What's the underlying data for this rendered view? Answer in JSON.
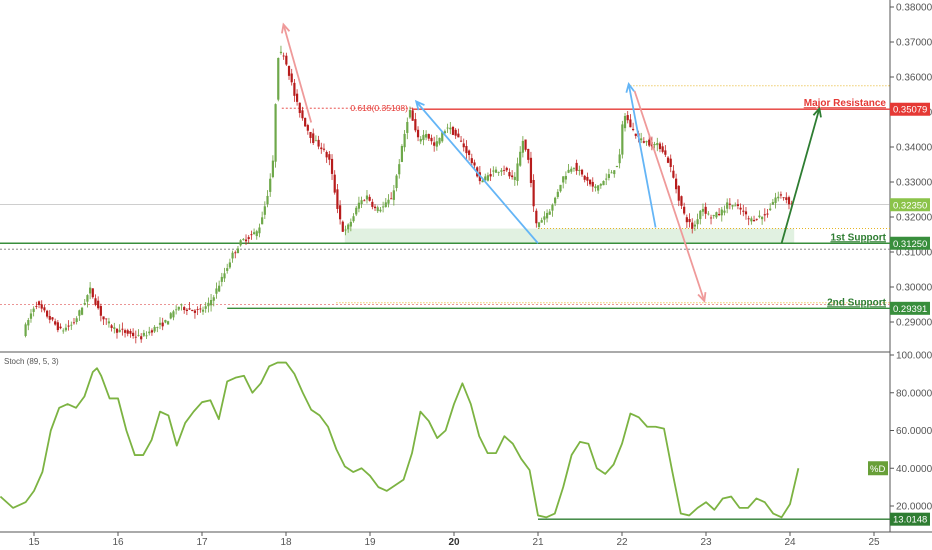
{
  "chart_data": [
    {
      "type": "candlestick",
      "title": "",
      "ylim": [
        0.284,
        0.383
      ],
      "y_ticks": [
        "0.38000",
        "0.37000",
        "0.36000",
        "0.35000",
        "0.34000",
        "0.33000",
        "0.32000",
        "0.31000",
        "0.30000",
        "0.29000"
      ],
      "x_ticks": [
        {
          "label": "15",
          "x": 15
        },
        {
          "label": "16",
          "x": 16
        },
        {
          "label": "17",
          "x": 17
        },
        {
          "label": "18",
          "x": 18
        },
        {
          "label": "19",
          "x": 19
        },
        {
          "label": "20",
          "x": 20,
          "bold": true
        },
        {
          "label": "21",
          "x": 21
        },
        {
          "label": "22",
          "x": 22
        },
        {
          "label": "23",
          "x": 23
        },
        {
          "label": "24",
          "x": 24
        },
        {
          "label": "25",
          "x": 25
        }
      ],
      "price_path": [
        [
          14.9,
          0.2868
        ],
        [
          15.05,
          0.2955
        ],
        [
          15.2,
          0.2915
        ],
        [
          15.35,
          0.2875
        ],
        [
          15.5,
          0.2895
        ],
        [
          15.6,
          0.294
        ],
        [
          15.7,
          0.2992
        ],
        [
          15.85,
          0.291
        ],
        [
          16.0,
          0.2878
        ],
        [
          16.15,
          0.2868
        ],
        [
          16.3,
          0.2855
        ],
        [
          16.45,
          0.288
        ],
        [
          16.6,
          0.29
        ],
        [
          16.75,
          0.2945
        ],
        [
          16.9,
          0.2935
        ],
        [
          17.0,
          0.293
        ],
        [
          17.1,
          0.2945
        ],
        [
          17.2,
          0.299
        ],
        [
          17.3,
          0.304
        ],
        [
          17.4,
          0.3095
        ],
        [
          17.5,
          0.313
        ],
        [
          17.6,
          0.3145
        ],
        [
          17.7,
          0.316
        ],
        [
          17.8,
          0.325
        ],
        [
          17.88,
          0.336
        ],
        [
          17.93,
          0.366
        ],
        [
          18.0,
          0.367
        ],
        [
          18.08,
          0.36
        ],
        [
          18.15,
          0.353
        ],
        [
          18.25,
          0.347
        ],
        [
          18.35,
          0.342
        ],
        [
          18.45,
          0.34
        ],
        [
          18.55,
          0.336
        ],
        [
          18.65,
          0.322
        ],
        [
          18.72,
          0.315
        ],
        [
          18.82,
          0.3195
        ],
        [
          18.9,
          0.324
        ],
        [
          19.0,
          0.326
        ],
        [
          19.1,
          0.322
        ],
        [
          19.2,
          0.323
        ],
        [
          19.3,
          0.326
        ],
        [
          19.4,
          0.338
        ],
        [
          19.5,
          0.351
        ],
        [
          19.6,
          0.342
        ],
        [
          19.7,
          0.344
        ],
        [
          19.8,
          0.34
        ],
        [
          19.95,
          0.346
        ],
        [
          20.1,
          0.342
        ],
        [
          20.2,
          0.338
        ],
        [
          20.35,
          0.33
        ],
        [
          20.5,
          0.333
        ],
        [
          20.62,
          0.334
        ],
        [
          20.75,
          0.33
        ],
        [
          20.85,
          0.342
        ],
        [
          20.93,
          0.335
        ],
        [
          21.0,
          0.3175
        ],
        [
          21.08,
          0.3195
        ],
        [
          21.2,
          0.323
        ],
        [
          21.32,
          0.331
        ],
        [
          21.45,
          0.335
        ],
        [
          21.55,
          0.332
        ],
        [
          21.7,
          0.328
        ],
        [
          21.85,
          0.331
        ],
        [
          22.0,
          0.336
        ],
        [
          22.05,
          0.35
        ],
        [
          22.15,
          0.345
        ],
        [
          22.25,
          0.342
        ],
        [
          22.38,
          0.341
        ],
        [
          22.5,
          0.34
        ],
        [
          22.6,
          0.335
        ],
        [
          22.7,
          0.326
        ],
        [
          22.78,
          0.32
        ],
        [
          22.88,
          0.3165
        ],
        [
          22.98,
          0.323
        ],
        [
          23.08,
          0.32
        ],
        [
          23.2,
          0.321
        ],
        [
          23.3,
          0.324
        ],
        [
          23.45,
          0.322
        ],
        [
          23.55,
          0.319
        ],
        [
          23.65,
          0.32
        ],
        [
          23.75,
          0.3205
        ],
        [
          23.85,
          0.3255
        ],
        [
          23.95,
          0.326
        ],
        [
          24.05,
          0.3235
        ]
      ],
      "levels": [
        {
          "name": "Major Resistance",
          "value": 0.35079,
          "label": "0.35079",
          "color": "#e53935"
        },
        {
          "name": "1st Support",
          "value": 0.3125,
          "label": "0.31250",
          "color": "#388e3c"
        },
        {
          "name": "2nd Support",
          "value": 0.29391,
          "label": "0.29391",
          "color": "#388e3c"
        },
        {
          "name": "current",
          "value": 0.3235,
          "label": "0.32350",
          "color": "#8bc34a"
        }
      ],
      "fib_label": "0.618(0.35108)",
      "annotations": [
        "Major Resistance",
        "1st Support",
        "2nd Support"
      ],
      "arrows": [
        {
          "color": "#ef9a9a",
          "from": [
            18.3,
            0.347
          ],
          "to": [
            17.97,
            0.375
          ]
        },
        {
          "color": "#ef9a9a",
          "from": [
            22.15,
            0.356
          ],
          "to": [
            22.98,
            0.296
          ]
        },
        {
          "color": "#64b5f6",
          "from": [
            21.0,
            0.3125
          ],
          "to": [
            19.55,
            0.353
          ]
        },
        {
          "color": "#64b5f6",
          "from": [
            22.4,
            0.317
          ],
          "to": [
            22.08,
            0.358
          ]
        },
        {
          "color": "#2e7d32",
          "from": [
            23.9,
            0.3125
          ],
          "to": [
            24.35,
            0.351
          ]
        }
      ]
    },
    {
      "type": "line",
      "title": "Stoch (89, 5, 3)",
      "ylim": [
        12,
        102
      ],
      "y_ticks": [
        "100.0000",
        "80.0000",
        "60.0000",
        "40.0000",
        "20.0000"
      ],
      "series": [
        {
          "name": "%D",
          "x": [
            14.6,
            14.75,
            14.9,
            15.0,
            15.1,
            15.2,
            15.3,
            15.4,
            15.5,
            15.6,
            15.7,
            15.75,
            15.8,
            15.9,
            16.0,
            16.1,
            16.2,
            16.3,
            16.4,
            16.5,
            16.6,
            16.7,
            16.8,
            16.9,
            17.0,
            17.1,
            17.2,
            17.3,
            17.4,
            17.5,
            17.6,
            17.7,
            17.8,
            17.9,
            18.0,
            18.1,
            18.2,
            18.3,
            18.4,
            18.5,
            18.6,
            18.7,
            18.8,
            18.9,
            19.0,
            19.1,
            19.2,
            19.3,
            19.4,
            19.5,
            19.6,
            19.7,
            19.8,
            19.9,
            20.0,
            20.1,
            20.2,
            20.3,
            20.4,
            20.5,
            20.6,
            20.7,
            20.8,
            20.9,
            21.0,
            21.1,
            21.2,
            21.3,
            21.4,
            21.5,
            21.6,
            21.7,
            21.8,
            21.9,
            22.0,
            22.1,
            22.2,
            22.3,
            22.4,
            22.5,
            22.6,
            22.7,
            22.8,
            22.9,
            23.0,
            23.1,
            23.2,
            23.3,
            23.4,
            23.5,
            23.6,
            23.7,
            23.8,
            23.9,
            24.0,
            24.1
          ],
          "values": [
            25,
            19,
            22,
            28,
            38,
            60,
            72,
            74,
            72,
            78,
            91,
            93,
            89,
            77,
            77,
            60,
            47,
            47,
            55,
            70,
            68,
            52,
            64,
            70,
            75,
            76,
            66,
            86,
            88,
            89,
            80,
            85,
            94,
            96,
            96,
            90,
            80,
            71,
            68,
            62,
            50,
            41,
            38,
            40,
            36,
            30,
            28,
            31,
            34,
            48,
            70,
            65,
            56,
            60,
            74,
            85,
            74,
            57,
            48,
            48,
            57,
            53,
            45,
            39,
            15,
            14,
            16,
            30,
            47,
            54,
            53,
            40,
            37,
            42,
            53,
            69,
            67,
            62,
            62,
            61,
            38,
            16,
            15,
            19,
            22,
            18,
            24,
            25,
            19,
            19,
            24,
            22,
            16,
            14,
            21,
            40
          ]
        }
      ],
      "levels": [
        {
          "name": "%D",
          "value": 40.0,
          "label": "%D",
          "color": "#689f38"
        },
        {
          "name": "low",
          "value": 13.0148,
          "label": "13.0148",
          "color": "#2e7d32"
        }
      ]
    }
  ]
}
